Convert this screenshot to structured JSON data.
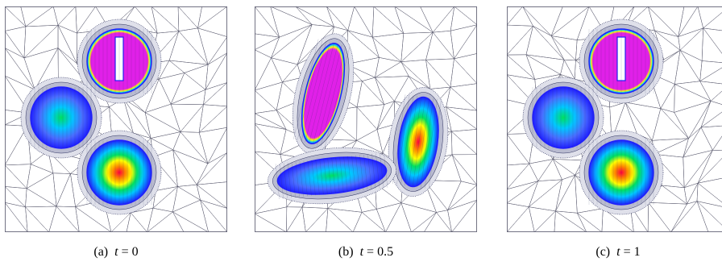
{
  "figure": {
    "panels": [
      {
        "id": "a",
        "label": "(a)",
        "variable": "t",
        "relation": "=",
        "value": "0"
      },
      {
        "id": "b",
        "label": "(b)",
        "variable": "t",
        "relation": "=",
        "value": "0.5"
      },
      {
        "id": "c",
        "label": "(c)",
        "variable": "t",
        "relation": "=",
        "value": "1"
      }
    ],
    "colors": {
      "mesh_line": "#5a5a6e",
      "mesh_dense": "#2b2f5e",
      "colormap": [
        "#1f1fff",
        "#00c8ff",
        "#00e060",
        "#ffff00",
        "#ff8000",
        "#ff0040",
        "#ff00ff"
      ],
      "slotted_disk": "#e020e8"
    }
  }
}
